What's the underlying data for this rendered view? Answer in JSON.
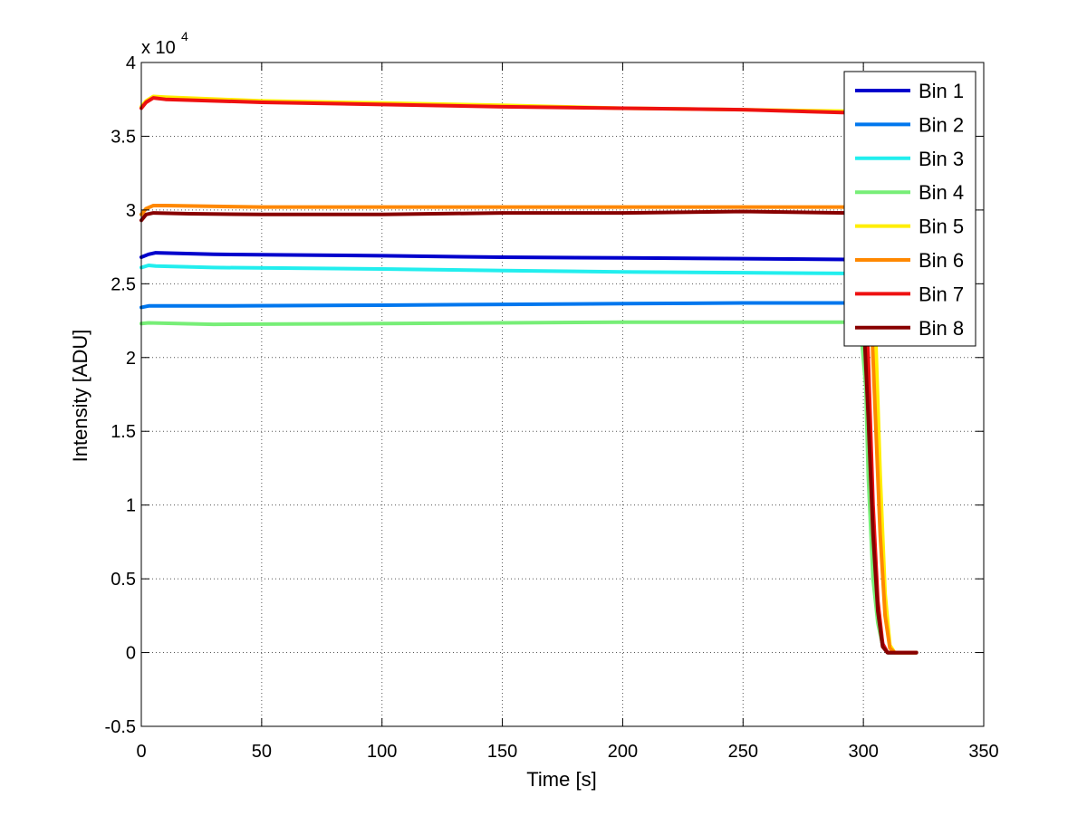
{
  "chart_data": {
    "type": "line",
    "xlabel": "Time [s]",
    "ylabel": "Intensity [ADU]",
    "y_exponent_label": "x 10",
    "y_exponent_power": "4",
    "xlim": [
      0,
      350
    ],
    "ylim": [
      -0.5,
      4
    ],
    "x_ticks": [
      0,
      50,
      100,
      150,
      200,
      250,
      300,
      350
    ],
    "x_tick_labels": [
      "0",
      "50",
      "100",
      "150",
      "200",
      "250",
      "300",
      "350"
    ],
    "y_ticks": [
      -0.5,
      0,
      0.5,
      1,
      1.5,
      2,
      2.5,
      3,
      3.5,
      4
    ],
    "y_tick_labels": [
      "-0.5",
      "0",
      "0.5",
      "1",
      "1.5",
      "2",
      "2.5",
      "3",
      "3.5",
      "4"
    ],
    "grid": true,
    "legend_position": "top-right",
    "series": [
      {
        "name": "Bin 1",
        "color": "#0000cc",
        "points": [
          [
            0,
            2.68
          ],
          [
            3,
            2.7
          ],
          [
            6,
            2.71
          ],
          [
            30,
            2.7
          ],
          [
            100,
            2.69
          ],
          [
            150,
            2.68
          ],
          [
            200,
            2.675
          ],
          [
            250,
            2.67
          ],
          [
            293,
            2.665
          ],
          [
            299,
            2.6
          ],
          [
            301,
            2.2
          ],
          [
            302,
            1.5
          ],
          [
            304,
            0.6
          ],
          [
            306,
            0.25
          ],
          [
            308,
            0.06
          ],
          [
            310,
            0.0
          ],
          [
            322,
            0.0
          ]
        ]
      },
      {
        "name": "Bin 2",
        "color": "#0077ee",
        "points": [
          [
            0,
            2.34
          ],
          [
            3,
            2.35
          ],
          [
            30,
            2.35
          ],
          [
            100,
            2.355
          ],
          [
            150,
            2.36
          ],
          [
            200,
            2.365
          ],
          [
            250,
            2.37
          ],
          [
            293,
            2.37
          ],
          [
            299,
            2.33
          ],
          [
            301,
            1.9
          ],
          [
            302,
            1.3
          ],
          [
            304,
            0.55
          ],
          [
            306,
            0.22
          ],
          [
            308,
            0.05
          ],
          [
            310,
            0.0
          ],
          [
            322,
            0.0
          ]
        ]
      },
      {
        "name": "Bin 3",
        "color": "#22eeee",
        "points": [
          [
            0,
            2.61
          ],
          [
            3,
            2.625
          ],
          [
            6,
            2.62
          ],
          [
            30,
            2.61
          ],
          [
            100,
            2.6
          ],
          [
            150,
            2.59
          ],
          [
            200,
            2.58
          ],
          [
            250,
            2.575
          ],
          [
            293,
            2.57
          ],
          [
            299,
            2.5
          ],
          [
            301,
            2.1
          ],
          [
            302,
            1.45
          ],
          [
            304,
            0.58
          ],
          [
            306,
            0.24
          ],
          [
            308,
            0.05
          ],
          [
            310,
            0.0
          ],
          [
            322,
            0.0
          ]
        ]
      },
      {
        "name": "Bin 4",
        "color": "#77ee77",
        "points": [
          [
            0,
            2.23
          ],
          [
            3,
            2.235
          ],
          [
            30,
            2.225
          ],
          [
            100,
            2.23
          ],
          [
            150,
            2.235
          ],
          [
            200,
            2.24
          ],
          [
            250,
            2.24
          ],
          [
            293,
            2.24
          ],
          [
            299,
            2.18
          ],
          [
            301,
            1.8
          ],
          [
            302,
            1.2
          ],
          [
            304,
            0.5
          ],
          [
            306,
            0.2
          ],
          [
            308,
            0.05
          ],
          [
            310,
            0.0
          ],
          [
            322,
            0.0
          ]
        ]
      },
      {
        "name": "Bin 5",
        "color": "#ffee00",
        "points": [
          [
            0,
            3.7
          ],
          [
            2,
            3.74
          ],
          [
            5,
            3.77
          ],
          [
            10,
            3.765
          ],
          [
            50,
            3.74
          ],
          [
            100,
            3.725
          ],
          [
            150,
            3.71
          ],
          [
            200,
            3.69
          ],
          [
            250,
            3.68
          ],
          [
            293,
            3.67
          ],
          [
            300,
            3.5
          ],
          [
            303,
            3.0
          ],
          [
            305,
            2.2
          ],
          [
            307,
            1.2
          ],
          [
            309,
            0.4
          ],
          [
            311,
            0.05
          ],
          [
            313,
            0.0
          ],
          [
            322,
            0.0
          ]
        ]
      },
      {
        "name": "Bin 6",
        "color": "#ff8800",
        "points": [
          [
            0,
            2.97
          ],
          [
            2,
            3.01
          ],
          [
            5,
            3.03
          ],
          [
            10,
            3.03
          ],
          [
            50,
            3.02
          ],
          [
            100,
            3.02
          ],
          [
            150,
            3.02
          ],
          [
            200,
            3.02
          ],
          [
            250,
            3.02
          ],
          [
            293,
            3.02
          ],
          [
            300,
            2.9
          ],
          [
            303,
            2.4
          ],
          [
            305,
            1.6
          ],
          [
            307,
            0.8
          ],
          [
            309,
            0.25
          ],
          [
            311,
            0.03
          ],
          [
            313,
            0.0
          ],
          [
            322,
            0.0
          ]
        ]
      },
      {
        "name": "Bin 7",
        "color": "#ee1111",
        "points": [
          [
            0,
            3.69
          ],
          [
            2,
            3.73
          ],
          [
            5,
            3.76
          ],
          [
            10,
            3.75
          ],
          [
            50,
            3.73
          ],
          [
            100,
            3.715
          ],
          [
            150,
            3.7
          ],
          [
            200,
            3.69
          ],
          [
            250,
            3.68
          ],
          [
            293,
            3.66
          ],
          [
            298,
            3.4
          ],
          [
            300,
            2.8
          ],
          [
            302,
            2.0
          ],
          [
            304,
            1.0
          ],
          [
            306,
            0.35
          ],
          [
            308,
            0.06
          ],
          [
            310,
            0.0
          ],
          [
            322,
            0.0
          ]
        ]
      },
      {
        "name": "Bin 8",
        "color": "#880000",
        "points": [
          [
            0,
            2.93
          ],
          [
            2,
            2.97
          ],
          [
            5,
            2.98
          ],
          [
            20,
            2.975
          ],
          [
            50,
            2.97
          ],
          [
            100,
            2.97
          ],
          [
            150,
            2.98
          ],
          [
            200,
            2.98
          ],
          [
            250,
            2.99
          ],
          [
            293,
            2.98
          ],
          [
            298,
            2.8
          ],
          [
            300,
            2.3
          ],
          [
            302,
            1.6
          ],
          [
            304,
            0.8
          ],
          [
            306,
            0.28
          ],
          [
            308,
            0.04
          ],
          [
            310,
            0.0
          ],
          [
            322,
            0.0
          ]
        ]
      }
    ]
  }
}
